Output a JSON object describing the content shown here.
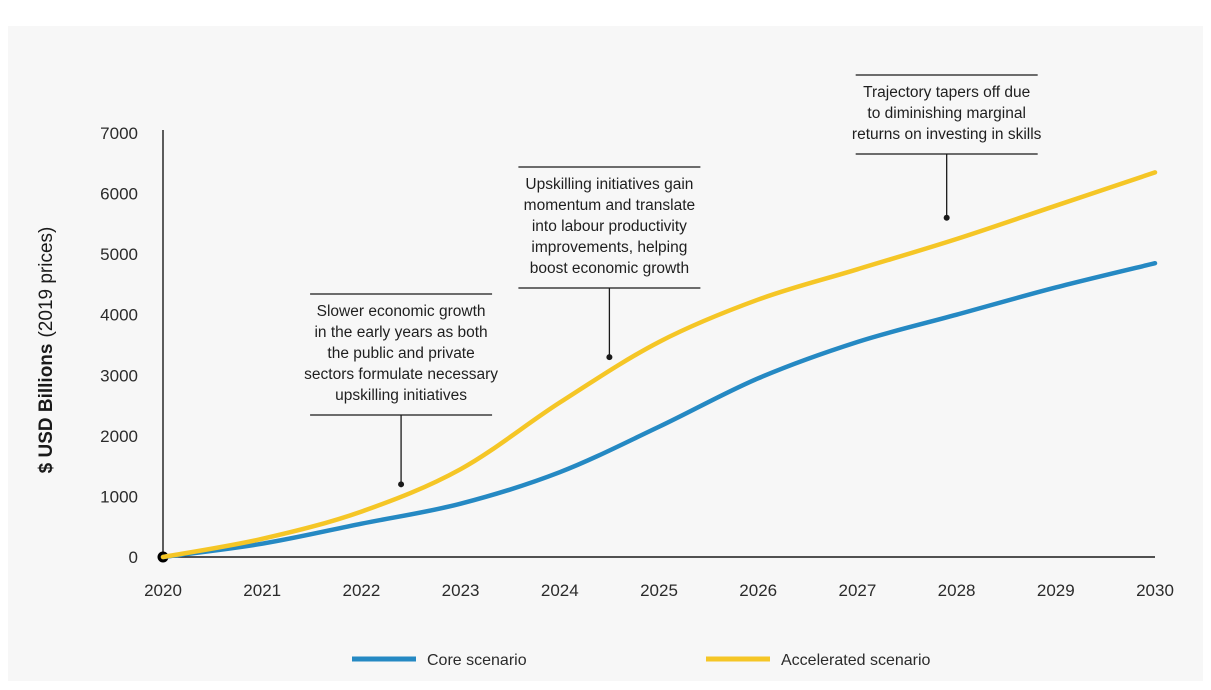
{
  "chart_data": {
    "type": "line",
    "title": "",
    "xlabel": "",
    "ylabel": "$ USD Billions",
    "ylabel_suffix": "(2019 prices)",
    "x": [
      2020,
      2021,
      2022,
      2023,
      2024,
      2025,
      2026,
      2027,
      2028,
      2029,
      2030
    ],
    "x_tick_labels": [
      "2020",
      "2021",
      "2022",
      "2023",
      "2024",
      "2025",
      "2026",
      "2027",
      "2028",
      "2029",
      "2030"
    ],
    "y_ticks": [
      0,
      1000,
      2000,
      3000,
      4000,
      5000,
      6000,
      7000
    ],
    "ylim": [
      0,
      7000
    ],
    "grid": false,
    "legend_position": "bottom",
    "series": [
      {
        "name": "Core scenario",
        "color": "#2589c3",
        "values": [
          0,
          220,
          550,
          880,
          1400,
          2150,
          2950,
          3550,
          4000,
          4450,
          4850
        ]
      },
      {
        "name": "Accelerated scenario",
        "color": "#f5c626",
        "values": [
          0,
          300,
          750,
          1450,
          2550,
          3550,
          4250,
          4750,
          5250,
          5800,
          6350
        ]
      }
    ],
    "annotations": [
      {
        "x": 2022.4,
        "y": 1200,
        "lines": [
          "Slower economic growth",
          "in the early years as both",
          "the public and private",
          "sectors formulate necessary",
          "upskilling initiatives"
        ]
      },
      {
        "x": 2024.5,
        "y": 3300,
        "lines": [
          "Upskilling initiatives gain",
          "momentum and translate",
          "into labour productivity",
          "improvements, helping",
          "boost economic growth"
        ]
      },
      {
        "x": 2027.9,
        "y": 5600,
        "lines": [
          "Trajectory tapers off due",
          "to diminishing marginal",
          "returns on investing in skills"
        ]
      }
    ]
  }
}
